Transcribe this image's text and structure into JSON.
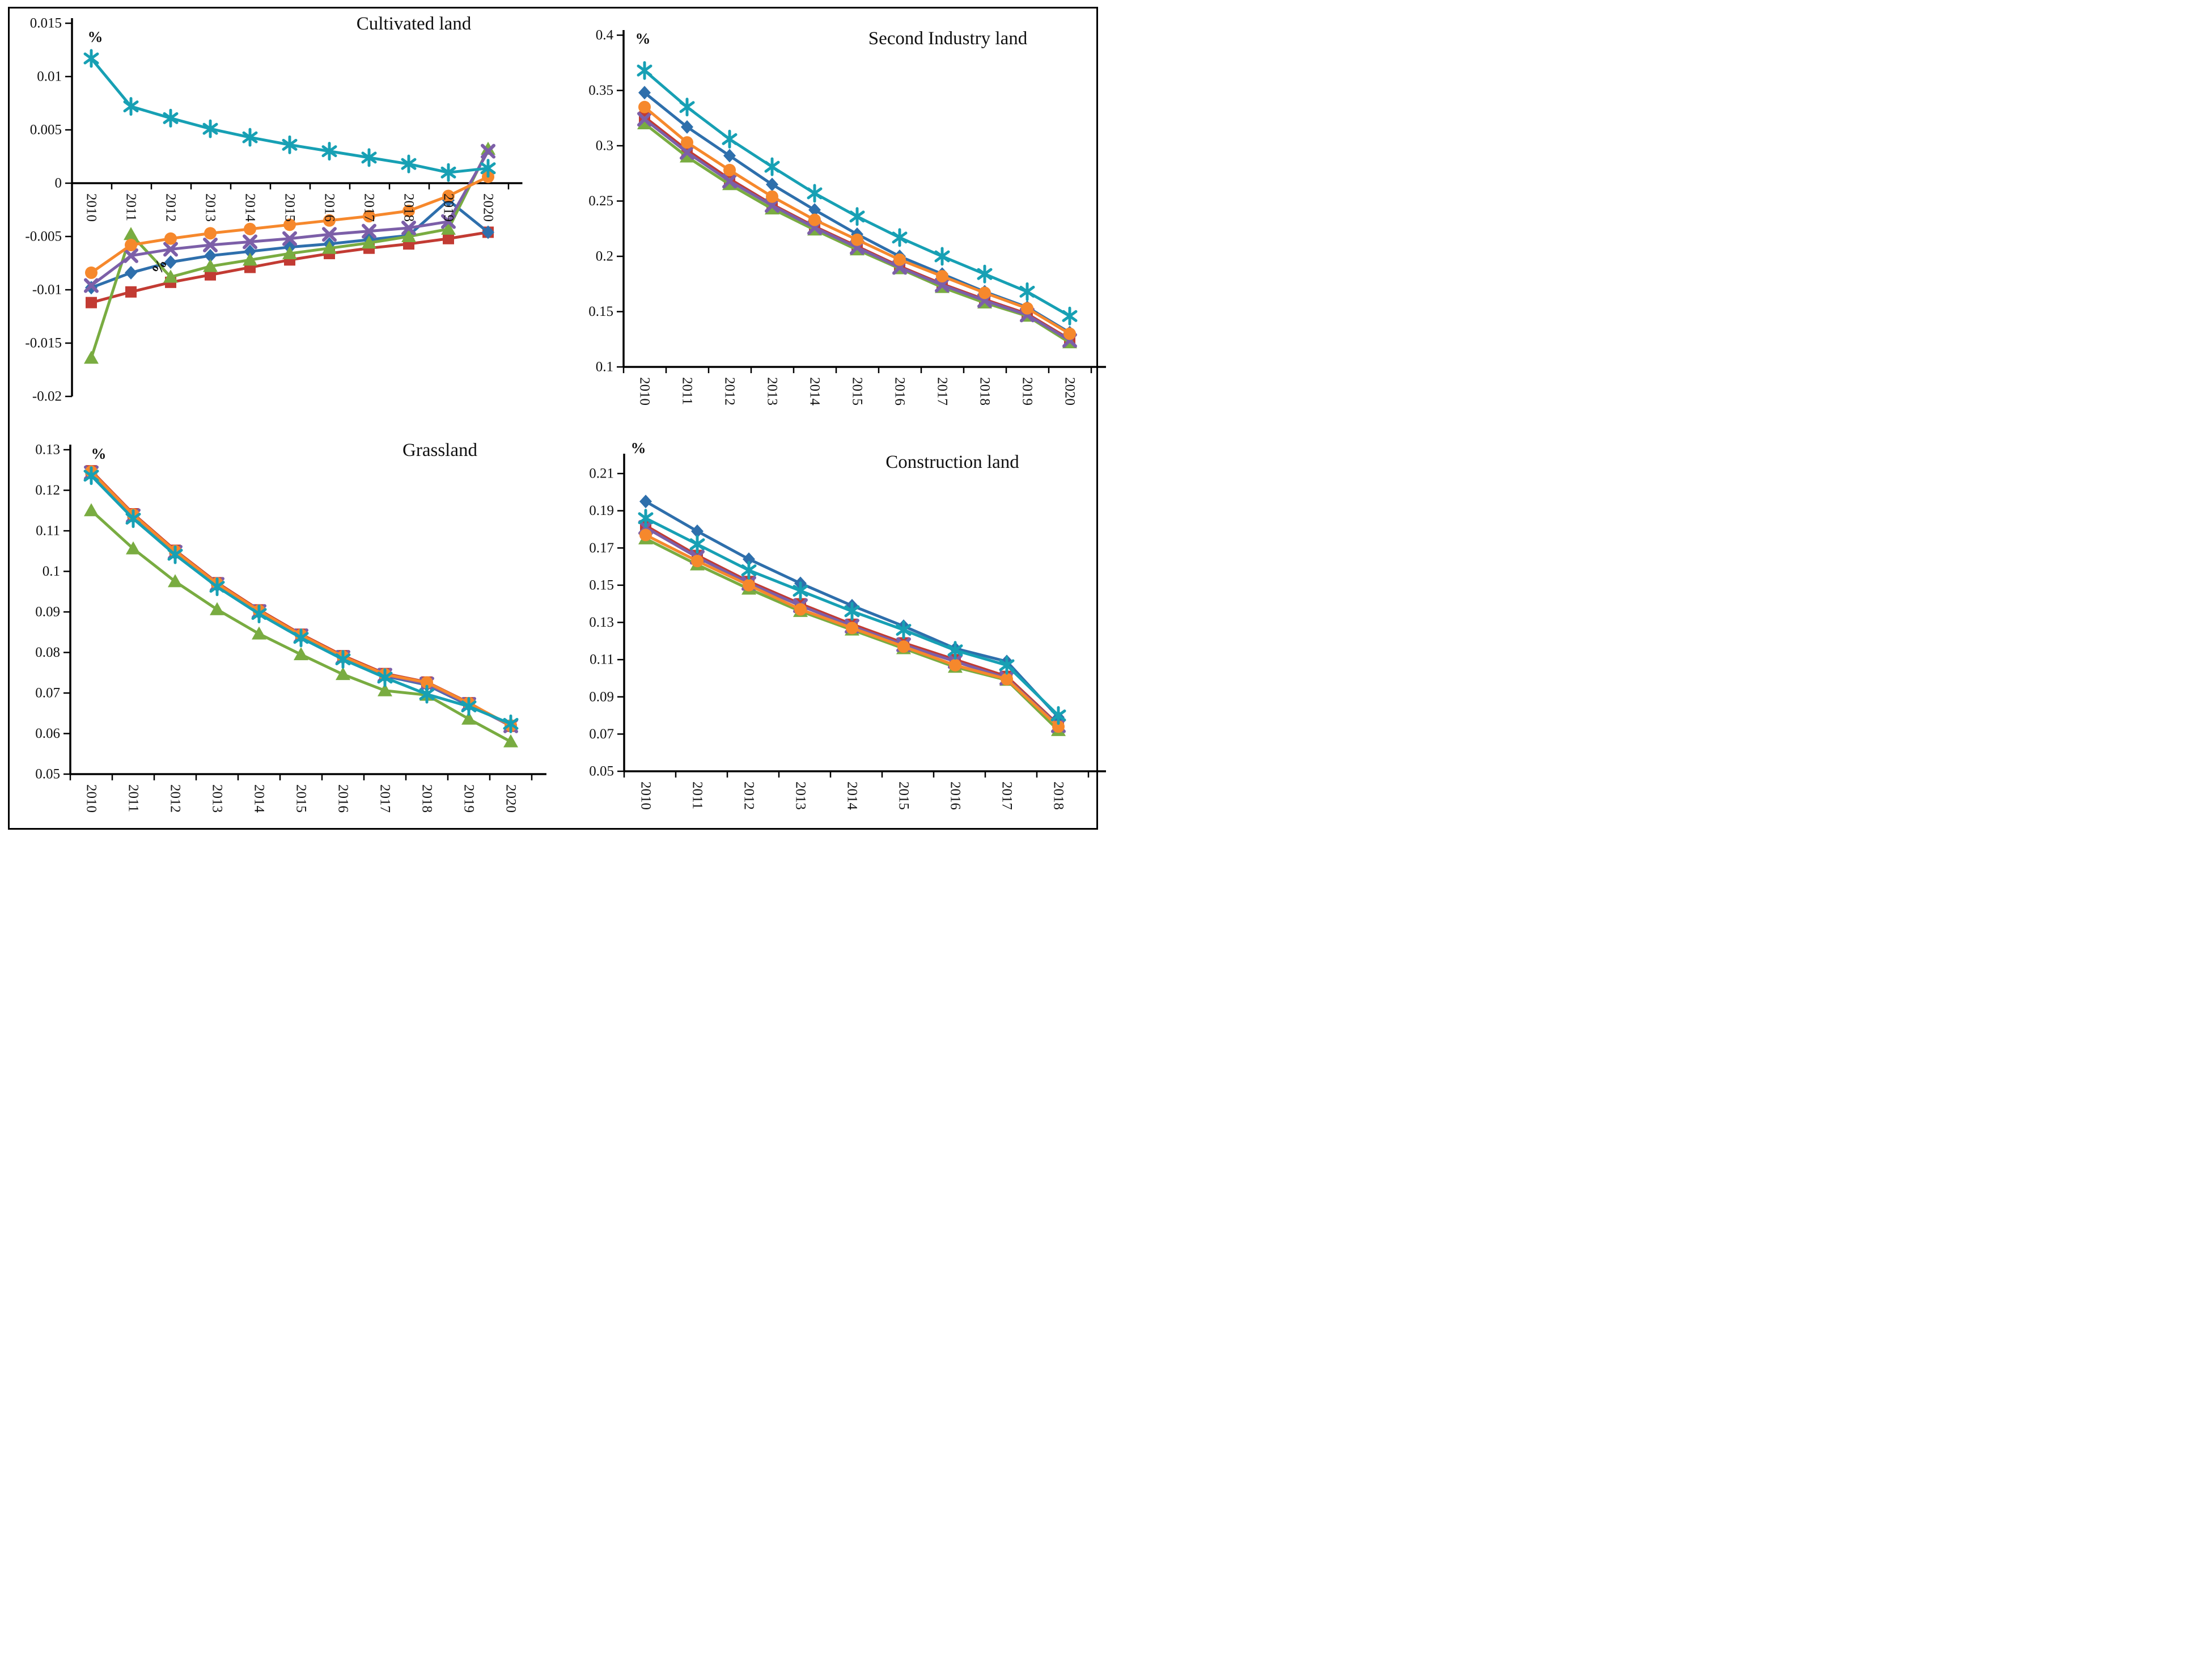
{
  "figure": {
    "description": "Four-panel line chart figure of land-type change rates, 2010-2020",
    "unit_label": "%"
  },
  "chart_data": [
    {
      "id": "cultivated-land",
      "type": "line",
      "title": "Cultivated land",
      "unit_label": "%",
      "x_categories": [
        "2010",
        "2011",
        "2012",
        "2013",
        "2014",
        "2015",
        "2016",
        "2017",
        "2018",
        "2019",
        "2020"
      ],
      "ylim": [
        -0.02,
        0.015
      ],
      "ytick_labels": [
        "0.015",
        "0.01",
        "0.005",
        "0",
        "-0.005",
        "-0.01",
        "-0.015",
        "-0.02"
      ],
      "x_axis_at": 0,
      "grid": false,
      "legend": "none",
      "stray_label": {
        "text": "%",
        "near_year": "2012",
        "y_value": -0.0078
      },
      "series": [
        {
          "name": "red-square",
          "marker": "square",
          "color": "#C23B33",
          "values": [
            -0.0112,
            -0.0102,
            -0.0093,
            -0.0086,
            -0.0079,
            -0.0072,
            -0.0066,
            -0.0061,
            -0.0057,
            -0.0052,
            -0.0046
          ]
        },
        {
          "name": "blue-diamond",
          "marker": "diamond",
          "color": "#2E6FAC",
          "values": [
            -0.0098,
            -0.0084,
            -0.0074,
            -0.0068,
            -0.0064,
            -0.006,
            -0.0057,
            -0.0053,
            -0.0049,
            -0.0016,
            -0.0046
          ]
        },
        {
          "name": "green-triangle",
          "marker": "triangle",
          "color": "#79AC41",
          "values": [
            -0.0164,
            -0.0048,
            -0.0088,
            -0.0078,
            -0.0072,
            -0.0066,
            -0.0061,
            -0.0056,
            -0.005,
            -0.0043,
            0.0032
          ]
        },
        {
          "name": "purple-x",
          "marker": "x",
          "color": "#7C5FA8",
          "values": [
            -0.0096,
            -0.0068,
            -0.0062,
            -0.0058,
            -0.0055,
            -0.0052,
            -0.0048,
            -0.0045,
            -0.0042,
            -0.0036,
            0.003
          ]
        },
        {
          "name": "orange-circle",
          "marker": "circle",
          "color": "#F6882C",
          "values": [
            -0.0084,
            -0.0058,
            -0.0052,
            -0.0047,
            -0.0043,
            -0.0039,
            -0.0035,
            -0.0031,
            -0.0026,
            -0.0012,
            0.0006
          ]
        },
        {
          "name": "teal-asterisk",
          "marker": "asterisk",
          "color": "#17A0B4",
          "values": [
            0.0117,
            0.0072,
            0.0061,
            0.0051,
            0.0043,
            0.0036,
            0.003,
            0.0024,
            0.0018,
            0.001,
            0.0014
          ]
        }
      ]
    },
    {
      "id": "second-industry-land",
      "type": "line",
      "title": "Second Industry land",
      "unit_label": "%",
      "x_categories": [
        "2010",
        "2011",
        "2012",
        "2013",
        "2014",
        "2015",
        "2016",
        "2017",
        "2018",
        "2019",
        "2020"
      ],
      "ylim": [
        0.1,
        0.4
      ],
      "ytick_labels": [
        "0.4",
        "0.35",
        "0.3",
        "0.25",
        "0.2",
        "0.15",
        "0.1"
      ],
      "x_axis_at": 0.1,
      "grid": false,
      "legend": "none",
      "series": [
        {
          "name": "red-square",
          "marker": "square",
          "color": "#C23B33",
          "values": [
            0.326,
            0.296,
            0.27,
            0.247,
            0.227,
            0.209,
            0.191,
            0.175,
            0.161,
            0.148,
            0.125
          ]
        },
        {
          "name": "blue-diamond",
          "marker": "diamond",
          "color": "#2E6FAC",
          "values": [
            0.348,
            0.317,
            0.291,
            0.265,
            0.242,
            0.22,
            0.2,
            0.184,
            0.168,
            0.154,
            0.131
          ]
        },
        {
          "name": "green-triangle",
          "marker": "triangle",
          "color": "#79AC41",
          "values": [
            0.32,
            0.29,
            0.265,
            0.243,
            0.224,
            0.206,
            0.189,
            0.172,
            0.158,
            0.146,
            0.122
          ]
        },
        {
          "name": "purple-x",
          "marker": "x",
          "color": "#7C5FA8",
          "values": [
            0.324,
            0.294,
            0.268,
            0.246,
            0.226,
            0.208,
            0.19,
            0.174,
            0.16,
            0.147,
            0.124
          ]
        },
        {
          "name": "orange-circle",
          "marker": "circle",
          "color": "#F6882C",
          "values": [
            0.335,
            0.303,
            0.278,
            0.254,
            0.233,
            0.215,
            0.197,
            0.182,
            0.167,
            0.153,
            0.13
          ]
        },
        {
          "name": "teal-asterisk",
          "marker": "asterisk",
          "color": "#17A0B4",
          "values": [
            0.368,
            0.335,
            0.306,
            0.281,
            0.257,
            0.236,
            0.217,
            0.2,
            0.184,
            0.168,
            0.146
          ]
        }
      ]
    },
    {
      "id": "grassland",
      "type": "line",
      "title": "Grassland",
      "unit_label": "%",
      "x_categories": [
        "2010",
        "2011",
        "2012",
        "2013",
        "2014",
        "2015",
        "2016",
        "2017",
        "2018",
        "2019",
        "2020"
      ],
      "ylim": [
        0.05,
        0.13
      ],
      "ytick_labels": [
        "0.13",
        "0.12",
        "0.11",
        "0.1",
        "0.09",
        "0.08",
        "0.07",
        "0.06",
        "0.05"
      ],
      "x_axis_at": 0.05,
      "grid": false,
      "legend": "none",
      "series": [
        {
          "name": "red-square",
          "marker": "square",
          "color": "#C23B33",
          "values": [
            0.1248,
            0.1142,
            0.1052,
            0.0972,
            0.0905,
            0.0845,
            0.0792,
            0.0748,
            0.0727,
            0.0676,
            0.0618
          ]
        },
        {
          "name": "blue-diamond",
          "marker": "diamond",
          "color": "#2E6FAC",
          "values": [
            0.124,
            0.1134,
            0.1044,
            0.0965,
            0.0898,
            0.0839,
            0.0786,
            0.0742,
            0.072,
            0.067,
            0.0622
          ]
        },
        {
          "name": "green-triangle",
          "marker": "triangle",
          "color": "#79AC41",
          "values": [
            0.115,
            0.1056,
            0.0975,
            0.0906,
            0.0846,
            0.0795,
            0.0746,
            0.0706,
            0.0695,
            0.0636,
            0.058
          ]
        },
        {
          "name": "purple-x",
          "marker": "x",
          "color": "#7C5FA8",
          "values": [
            0.1243,
            0.1137,
            0.1047,
            0.0968,
            0.0901,
            0.0841,
            0.0788,
            0.0744,
            0.0722,
            0.0672,
            0.0619
          ]
        },
        {
          "name": "orange-circle",
          "marker": "circle",
          "color": "#F6882C",
          "values": [
            0.1246,
            0.114,
            0.105,
            0.097,
            0.0903,
            0.0843,
            0.079,
            0.0746,
            0.0726,
            0.0675,
            0.062
          ]
        },
        {
          "name": "teal-asterisk",
          "marker": "asterisk",
          "color": "#17A0B4",
          "values": [
            0.1236,
            0.113,
            0.1041,
            0.0962,
            0.0895,
            0.0836,
            0.0783,
            0.0738,
            0.0697,
            0.0667,
            0.0624
          ]
        }
      ]
    },
    {
      "id": "construction-land",
      "type": "line",
      "title": "Construction land",
      "unit_label": "%",
      "x_categories": [
        "2010",
        "2011",
        "2012",
        "2013",
        "2014",
        "2015",
        "2016",
        "2017",
        "2018"
      ],
      "ylim": [
        0.05,
        0.21
      ],
      "ytick_labels": [
        "0.21",
        "0.19",
        "0.17",
        "0.15",
        "0.13",
        "0.11",
        "0.09",
        "0.07",
        "0.05"
      ],
      "x_axis_at": 0.05,
      "grid": false,
      "legend": "none",
      "series": [
        {
          "name": "red-square",
          "marker": "square",
          "color": "#C23B33",
          "values": [
            0.182,
            0.166,
            0.152,
            0.14,
            0.129,
            0.119,
            0.11,
            0.101,
            0.075
          ]
        },
        {
          "name": "blue-diamond",
          "marker": "diamond",
          "color": "#2E6FAC",
          "values": [
            0.195,
            0.179,
            0.164,
            0.151,
            0.139,
            0.128,
            0.116,
            0.109,
            0.079
          ]
        },
        {
          "name": "green-triangle",
          "marker": "triangle",
          "color": "#79AC41",
          "values": [
            0.175,
            0.161,
            0.148,
            0.136,
            0.126,
            0.116,
            0.106,
            0.099,
            0.072
          ]
        },
        {
          "name": "purple-x",
          "marker": "x",
          "color": "#7C5FA8",
          "values": [
            0.181,
            0.165,
            0.151,
            0.139,
            0.128,
            0.118,
            0.109,
            0.1,
            0.0745
          ]
        },
        {
          "name": "orange-circle",
          "marker": "circle",
          "color": "#F6882C",
          "values": [
            0.177,
            0.163,
            0.15,
            0.137,
            0.127,
            0.117,
            0.107,
            0.0995,
            0.074
          ]
        },
        {
          "name": "teal-asterisk",
          "marker": "asterisk",
          "color": "#17A0B4",
          "values": [
            0.186,
            0.172,
            0.158,
            0.147,
            0.136,
            0.126,
            0.115,
            0.107,
            0.08
          ]
        }
      ]
    }
  ]
}
